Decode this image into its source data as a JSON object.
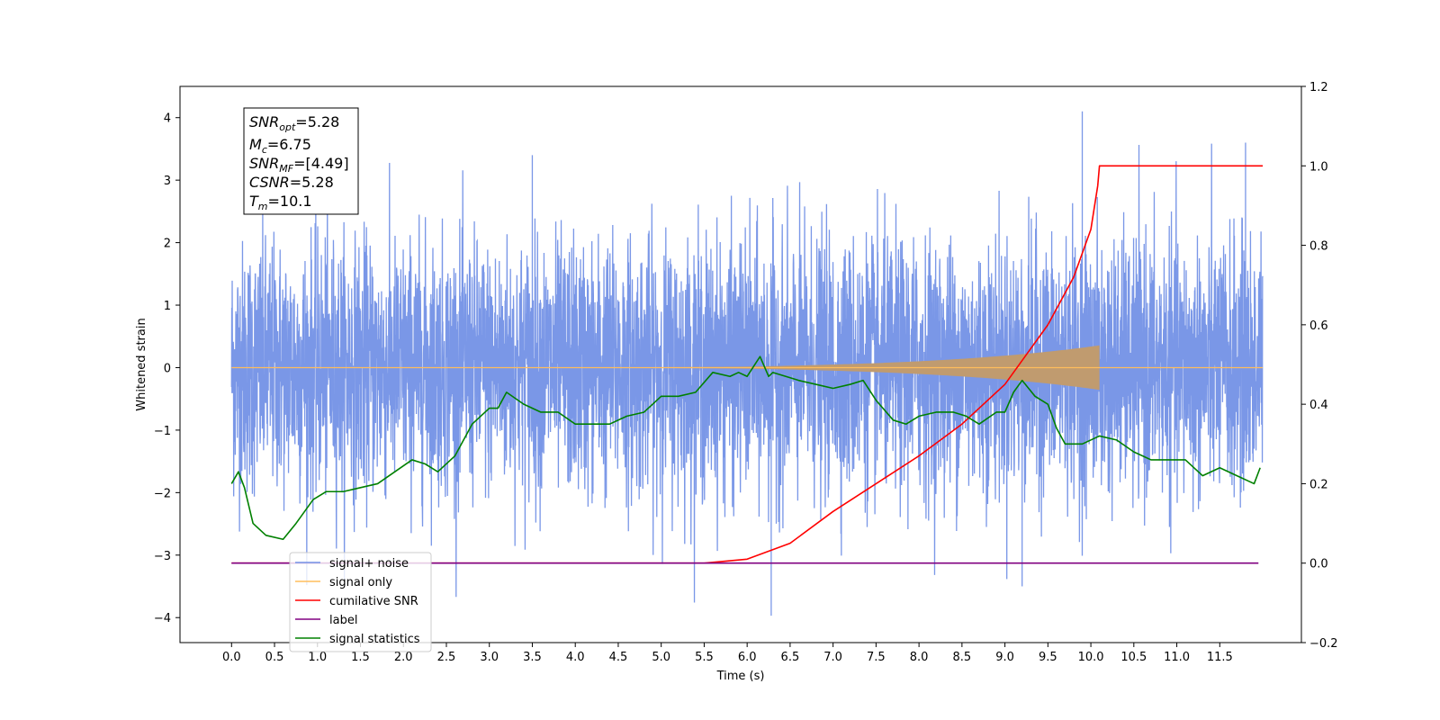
{
  "chart_data": {
    "type": "line",
    "title": "",
    "xlabel": "Time (s)",
    "ylabel": "Whitened strain",
    "xlim": [
      -0.6,
      12.45
    ],
    "ylim": [
      -4.4,
      4.5
    ],
    "y2lim": [
      -0.2,
      1.2
    ],
    "grid": false,
    "legend_position": "lower-left",
    "x_ticks": [
      0.0,
      0.5,
      1.0,
      1.5,
      2.0,
      2.5,
      3.0,
      3.5,
      4.0,
      4.5,
      5.0,
      5.5,
      6.0,
      6.5,
      7.0,
      7.5,
      8.0,
      8.5,
      9.0,
      9.5,
      10.0,
      10.5,
      11.0,
      11.5
    ],
    "x_tick_labels": [
      "0.0",
      "0.5",
      "1.0",
      "1.5",
      "2.0",
      "2.5",
      "3.0",
      "3.5",
      "4.0",
      "4.5",
      "5.0",
      "5.5",
      "6.0",
      "6.5",
      "7.0",
      "7.5",
      "8.0",
      "8.5",
      "9.0",
      "9.5",
      "10.0",
      "10.5",
      "11.0",
      "11.5"
    ],
    "y_ticks": [
      4,
      3,
      2,
      1,
      0,
      -1,
      -2,
      -3,
      -4
    ],
    "y_tick_labels": [
      "4",
      "3",
      "2",
      "1",
      "0",
      "−1",
      "−2",
      "−3",
      "−4"
    ],
    "y2_ticks": [
      1.2,
      1.0,
      0.8,
      0.6,
      0.4,
      0.2,
      0.0,
      -0.2
    ],
    "y2_tick_labels": [
      "1.2",
      "1.0",
      "0.8",
      "0.6",
      "0.4",
      "0.2",
      "0.0",
      "−0.2"
    ],
    "info_box": {
      "snr_opt": {
        "main": "SNR",
        "sub": "opt",
        "value": "=5.28"
      },
      "mc": {
        "main": "M",
        "sub": "c",
        "value": "=6.75"
      },
      "snr_mf": {
        "main": "SNR",
        "sub": "MF",
        "value": "=[4.49]"
      },
      "csnr": {
        "main": "CSNR",
        "value": "=5.28"
      },
      "tm": {
        "main": "T",
        "sub": "m",
        "value": "=10.1"
      }
    },
    "series": [
      {
        "name": "signal+ noise",
        "color": "#7391e6",
        "axis": "left",
        "duration": 12.0,
        "std": 1.0,
        "peak_max": 4.1,
        "peak_min": -3.97
      },
      {
        "name": "signal only",
        "color": "#ffbd5c",
        "axis": "left",
        "chirp_end": 10.1,
        "amplitude_end": 0.55
      },
      {
        "name": "cumilative SNR",
        "color": "#ff0000",
        "axis": "right",
        "x": [
          0.0,
          5.5,
          6.0,
          6.5,
          7.0,
          7.5,
          8.0,
          8.5,
          9.0,
          9.5,
          9.8,
          10.0,
          10.08,
          10.1,
          12.0
        ],
        "y": [
          0.0,
          0.0,
          0.01,
          0.05,
          0.13,
          0.2,
          0.27,
          0.35,
          0.45,
          0.6,
          0.72,
          0.84,
          0.95,
          1.0,
          1.0
        ]
      },
      {
        "name": "label",
        "color": "#800080",
        "axis": "right",
        "x": [
          0.0,
          11.95
        ],
        "y": [
          0.0,
          0.0
        ]
      },
      {
        "name": "signal statistics",
        "color": "#008000",
        "axis": "right",
        "x": [
          0.0,
          0.08,
          0.15,
          0.25,
          0.4,
          0.6,
          0.75,
          0.95,
          1.1,
          1.3,
          1.5,
          1.7,
          1.9,
          2.1,
          2.25,
          2.4,
          2.6,
          2.8,
          3.0,
          3.1,
          3.2,
          3.4,
          3.6,
          3.8,
          4.0,
          4.2,
          4.4,
          4.6,
          4.8,
          5.0,
          5.2,
          5.4,
          5.6,
          5.8,
          5.9,
          6.0,
          6.15,
          6.25,
          6.3,
          6.45,
          6.6,
          6.8,
          7.0,
          7.2,
          7.35,
          7.5,
          7.7,
          7.85,
          8.0,
          8.2,
          8.4,
          8.55,
          8.7,
          8.9,
          9.0,
          9.1,
          9.2,
          9.35,
          9.5,
          9.6,
          9.7,
          9.9,
          10.1,
          10.3,
          10.5,
          10.7,
          10.9,
          11.1,
          11.3,
          11.5,
          11.7,
          11.9,
          11.97
        ],
        "y": [
          0.2,
          0.23,
          0.19,
          0.1,
          0.07,
          0.06,
          0.1,
          0.16,
          0.18,
          0.18,
          0.19,
          0.2,
          0.23,
          0.26,
          0.25,
          0.23,
          0.27,
          0.35,
          0.39,
          0.39,
          0.43,
          0.4,
          0.38,
          0.38,
          0.35,
          0.35,
          0.35,
          0.37,
          0.38,
          0.42,
          0.42,
          0.43,
          0.48,
          0.47,
          0.48,
          0.47,
          0.52,
          0.47,
          0.48,
          0.47,
          0.46,
          0.45,
          0.44,
          0.45,
          0.46,
          0.41,
          0.36,
          0.35,
          0.37,
          0.38,
          0.38,
          0.37,
          0.35,
          0.38,
          0.38,
          0.43,
          0.46,
          0.42,
          0.4,
          0.34,
          0.3,
          0.3,
          0.32,
          0.31,
          0.28,
          0.26,
          0.26,
          0.26,
          0.22,
          0.24,
          0.22,
          0.2,
          0.24
        ]
      }
    ]
  }
}
